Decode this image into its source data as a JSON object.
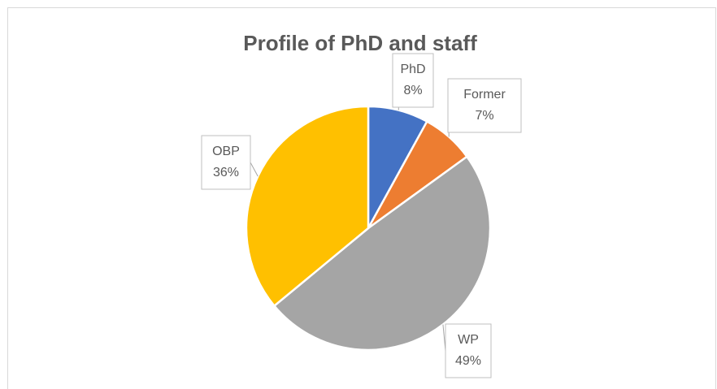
{
  "chart_data": {
    "type": "pie",
    "title": "Profile of PhD and staff",
    "categories": [
      "PhD",
      "Former",
      "WP",
      "OBP"
    ],
    "values": [
      8,
      7,
      49,
      36
    ],
    "value_labels": [
      "8%",
      "7%",
      "49%",
      "36%"
    ],
    "colors": [
      "#4472c4",
      "#ed7d31",
      "#a5a5a5",
      "#ffc000"
    ]
  }
}
